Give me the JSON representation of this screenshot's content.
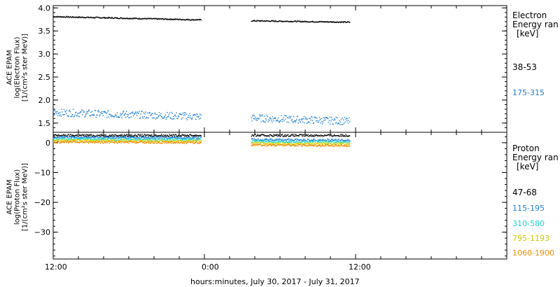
{
  "chart_data": [
    {
      "type": "scatter",
      "panel": "electron",
      "ylabel_lines": [
        "ACE EPAM",
        "log(Electron Flux)",
        "[1/(cm²s ster MeV)]"
      ],
      "ylim": [
        1.3,
        4.05
      ],
      "yticks": [
        "1.5",
        "2.0",
        "2.5",
        "3.0",
        "3.5",
        "4.0"
      ],
      "legend_lines": [
        "Electron",
        "Energy ran",
        "[keV]"
      ],
      "series": [
        {
          "name": "38-53",
          "color": "#000000",
          "segments": [
            [
              12.0,
              23.7,
              3.82,
              3.75
            ],
            [
              27.7,
              35.5,
              3.73,
              3.7
            ]
          ]
        },
        {
          "name": "175-315",
          "color": "#1f7fd6",
          "segments": [
            [
              12.0,
              23.7,
              1.74,
              1.65
            ],
            [
              27.7,
              35.5,
              1.62,
              1.55
            ]
          ]
        }
      ]
    },
    {
      "type": "scatter",
      "panel": "proton",
      "ylabel_lines": [
        "ACE EPAM",
        "log(Proton Flux)",
        "[1/(cm²s ster MeV)]"
      ],
      "ylim": [
        -39,
        3.5
      ],
      "yticks": [
        "0",
        "−10",
        "−20",
        "−30"
      ],
      "legend_lines": [
        "Proton",
        "Energy ran",
        "[keV]"
      ],
      "series": [
        {
          "name": "47-68",
          "color": "#000000",
          "segments": [
            [
              12.0,
              23.7,
              2.6,
              2.6
            ],
            [
              27.7,
              35.5,
              2.6,
              2.6
            ]
          ]
        },
        {
          "name": "115-195",
          "color": "#1f7fd6",
          "segments": [
            [
              12.0,
              23.7,
              2.0,
              1.8
            ],
            [
              27.7,
              35.5,
              1.2,
              1.0
            ]
          ]
        },
        {
          "name": "310-580",
          "color": "#1ed2d2",
          "segments": [
            [
              12.0,
              23.7,
              1.4,
              1.2
            ],
            [
              27.7,
              35.5,
              0.6,
              0.4
            ]
          ]
        },
        {
          "name": "795-1193",
          "color": "#d4d400",
          "segments": [
            [
              12.0,
              23.7,
              0.9,
              0.7
            ],
            [
              27.7,
              35.5,
              0.0,
              -0.2
            ]
          ]
        },
        {
          "name": "1060-1900",
          "color": "#f28c00",
          "segments": [
            [
              12.0,
              23.7,
              0.4,
              0.2
            ],
            [
              27.7,
              35.5,
              -0.6,
              -0.8
            ]
          ]
        }
      ]
    }
  ],
  "xaxis": {
    "range_hours": [
      12,
      48
    ],
    "tick_labels": [
      "12:00",
      "0:00",
      "12:00"
    ],
    "title": "hours:minutes, July 30, 2017 - July 31, 2017"
  }
}
